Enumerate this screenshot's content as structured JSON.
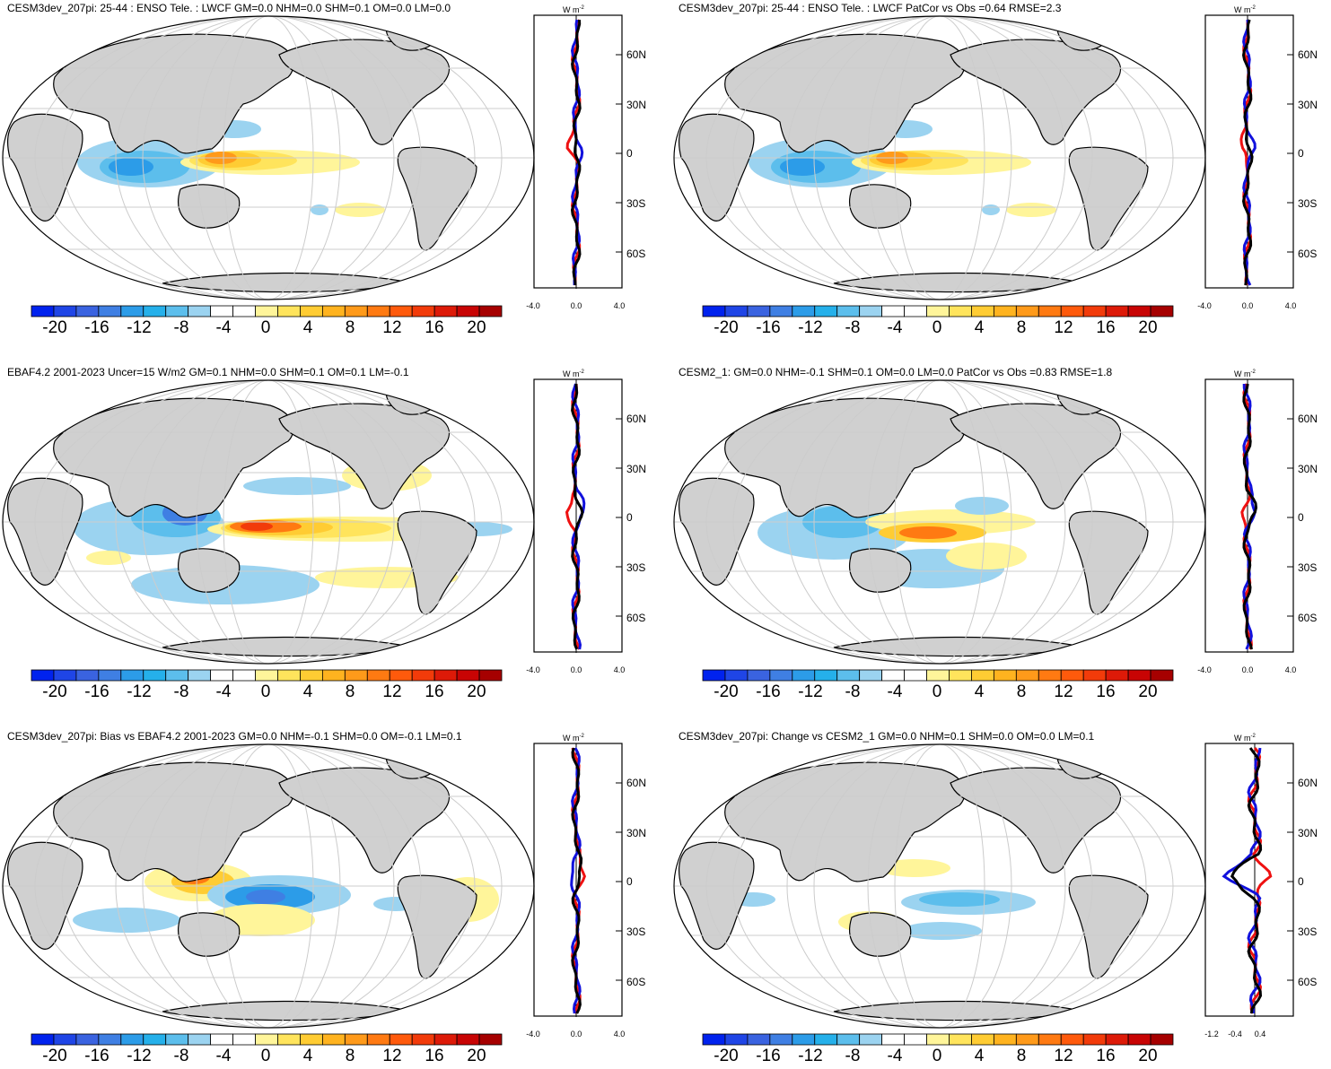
{
  "panels": [
    {
      "title": "CESM3dev_207pi: 25-44 : ENSO Tele. : LWCF GM=0.0 NHM=0.0 SHM=0.1 OM=0.0 LM=0.0",
      "unit": "W m",
      "unit_sup": "-2",
      "lat_labels": [
        "60N",
        "30N",
        "0",
        "30S",
        "60S"
      ],
      "x_ticks": [
        "-4.0",
        "0.0",
        "4.0"
      ],
      "pattern": "lanina_model"
    },
    {
      "title": "CESM3dev_207pi: 25-44 : ENSO Tele. : LWCF PatCor vs Obs =0.64 RMSE=2.3",
      "unit": "W m",
      "unit_sup": "-2",
      "lat_labels": [
        "60N",
        "30N",
        "0",
        "30S",
        "60S"
      ],
      "x_ticks": [
        "-4.0",
        "0.0",
        "4.0"
      ],
      "pattern": "lanina_model"
    },
    {
      "title": "EBAF4.2 2001-2023 Uncer=15 W/m2 GM=0.1 NHM=0.0 SHM=0.1 OM=0.1 LM=-0.1",
      "unit": "W m",
      "unit_sup": "-2",
      "lat_labels": [
        "60N",
        "30N",
        "0",
        "30S",
        "60S"
      ],
      "x_ticks": [
        "-4.0",
        "0.0",
        "4.0"
      ],
      "pattern": "obs"
    },
    {
      "title": "CESM2_1: GM=0.0 NHM=-0.1 SHM=0.1 OM=0.0 LM=0.0 PatCor vs Obs =0.83 RMSE=1.8",
      "unit": "W m",
      "unit_sup": "-2",
      "lat_labels": [
        "60N",
        "30N",
        "0",
        "30S",
        "60S"
      ],
      "x_ticks": [
        "-4.0",
        "0.0",
        "4.0"
      ],
      "pattern": "cesm2"
    },
    {
      "title": "CESM3dev_207pi: Bias vs EBAF4.2 2001-2023 GM=0.0 NHM=-0.1 SHM=0.0 OM=-0.1 LM=0.1",
      "unit": "W m",
      "unit_sup": "-2",
      "lat_labels": [
        "60N",
        "30N",
        "0",
        "30S",
        "60S"
      ],
      "x_ticks": [
        "-4.0",
        "0.0",
        "4.0"
      ],
      "pattern": "bias"
    },
    {
      "title": "CESM3dev_207pi: Change vs CESM2_1 GM=0.0 NHM=0.1 SHM=0.0 OM=0.0 LM=0.1",
      "unit": "W m",
      "unit_sup": "-2",
      "lat_labels": [
        "60N",
        "30N",
        "0",
        "30S",
        "60S"
      ],
      "x_ticks": [
        "-1.2",
        "-0.4",
        "0.4"
      ],
      "pattern": "change"
    }
  ],
  "colorbar": {
    "labels": [
      "-20",
      "-16",
      "-12",
      "-8",
      "-4",
      "0",
      "4",
      "8",
      "12",
      "16",
      "20"
    ],
    "colors": [
      "#0022ee",
      "#1f45e6",
      "#3a63e0",
      "#3f7fe3",
      "#2c9ce8",
      "#25b0ea",
      "#5cbeec",
      "#9bd3f0",
      "#ffffff",
      "#ffffff",
      "#fff59a",
      "#ffe45c",
      "#ffcc33",
      "#ffb31f",
      "#ff9a1a",
      "#ff7a12",
      "#ff5a0c",
      "#f23b0a",
      "#dd1a08",
      "#c80404",
      "#a60000"
    ]
  },
  "colors": {
    "land": "#d0d0d0",
    "grid": "#cccccc",
    "profile_model": "#000000",
    "profile_obs": "#ee1111",
    "profile_ref": "#1111dd"
  }
}
